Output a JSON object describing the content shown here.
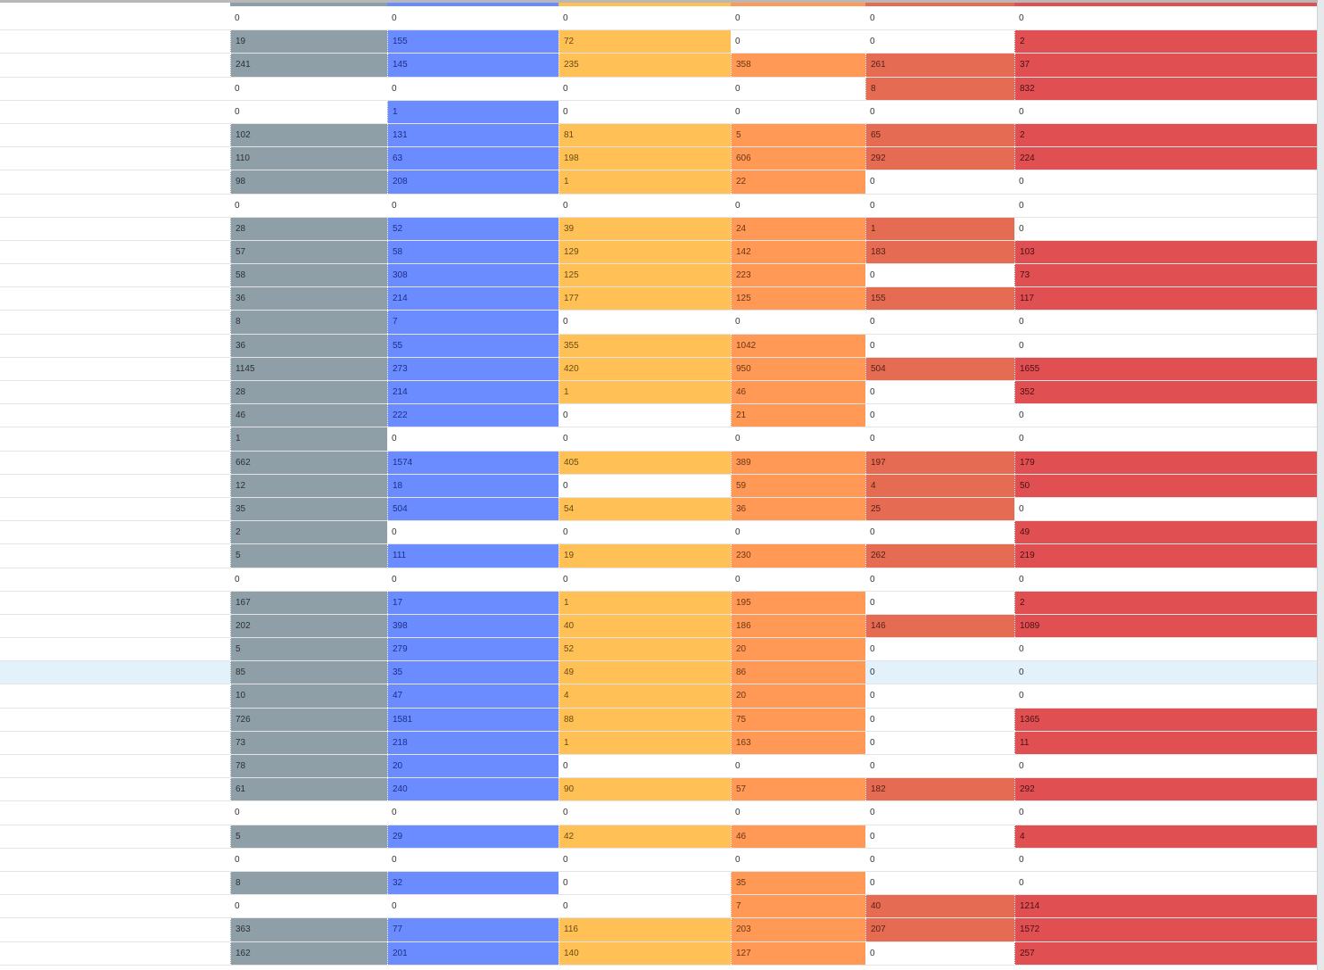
{
  "colors": {
    "col1": {
      "fill": "#8e9fa8",
      "text": "#2c3236"
    },
    "col2": {
      "fill": "#6b8cff",
      "text": "#1c2f8a"
    },
    "col3": {
      "fill": "#ffc155",
      "text": "#6b4a10"
    },
    "col4": {
      "fill": "#ff9955",
      "text": "#6b3514"
    },
    "col5": {
      "fill": "#e56b53",
      "text": "#5a2015"
    },
    "col6": {
      "fill": "#e05053",
      "text": "#4a1012"
    },
    "highlight_row": "#e3f1fb"
  },
  "highlighted_row_index": 28,
  "rows": [
    [
      0,
      0,
      0,
      0,
      0,
      0
    ],
    [
      19,
      155,
      72,
      0,
      0,
      2
    ],
    [
      241,
      145,
      235,
      358,
      261,
      37
    ],
    [
      0,
      0,
      0,
      0,
      8,
      832
    ],
    [
      0,
      1,
      0,
      0,
      0,
      0
    ],
    [
      102,
      131,
      81,
      5,
      65,
      2
    ],
    [
      110,
      63,
      198,
      606,
      292,
      224
    ],
    [
      98,
      208,
      1,
      22,
      0,
      0
    ],
    [
      0,
      0,
      0,
      0,
      0,
      0
    ],
    [
      28,
      52,
      39,
      24,
      1,
      0
    ],
    [
      57,
      58,
      129,
      142,
      183,
      103
    ],
    [
      58,
      308,
      125,
      223,
      0,
      73
    ],
    [
      36,
      214,
      177,
      125,
      155,
      117
    ],
    [
      8,
      7,
      0,
      0,
      0,
      0
    ],
    [
      36,
      55,
      355,
      1042,
      0,
      0
    ],
    [
      1145,
      273,
      420,
      950,
      504,
      1655
    ],
    [
      28,
      214,
      1,
      46,
      0,
      352
    ],
    [
      46,
      222,
      0,
      21,
      0,
      0
    ],
    [
      1,
      0,
      0,
      0,
      0,
      0
    ],
    [
      662,
      1574,
      405,
      389,
      197,
      179
    ],
    [
      12,
      18,
      0,
      59,
      4,
      50
    ],
    [
      35,
      504,
      54,
      36,
      25,
      0
    ],
    [
      2,
      0,
      0,
      0,
      0,
      49
    ],
    [
      5,
      111,
      19,
      230,
      262,
      219
    ],
    [
      0,
      0,
      0,
      0,
      0,
      0
    ],
    [
      167,
      17,
      1,
      195,
      0,
      2
    ],
    [
      202,
      398,
      40,
      186,
      146,
      1089
    ],
    [
      5,
      279,
      52,
      20,
      0,
      0
    ],
    [
      85,
      35,
      49,
      86,
      0,
      0
    ],
    [
      10,
      47,
      4,
      20,
      0,
      0
    ],
    [
      726,
      1581,
      88,
      75,
      0,
      1365
    ],
    [
      73,
      218,
      1,
      163,
      0,
      11
    ],
    [
      78,
      20,
      0,
      0,
      0,
      0
    ],
    [
      61,
      240,
      90,
      57,
      182,
      292
    ],
    [
      0,
      0,
      0,
      0,
      0,
      0
    ],
    [
      5,
      29,
      42,
      46,
      0,
      4
    ],
    [
      0,
      0,
      0,
      0,
      0,
      0
    ],
    [
      8,
      32,
      0,
      35,
      0,
      0
    ],
    [
      0,
      0,
      0,
      7,
      40,
      1214
    ],
    [
      363,
      77,
      116,
      203,
      207,
      1572
    ],
    [
      162,
      201,
      140,
      127,
      0,
      257
    ]
  ]
}
